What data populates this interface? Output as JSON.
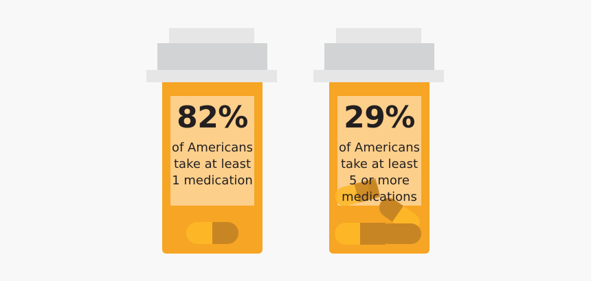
{
  "stats": [
    {
      "percent": "82%",
      "lines": [
        "of Americans",
        "take at least",
        "1 medication"
      ]
    },
    {
      "percent": "29%",
      "lines": [
        "of Americans",
        "take at least",
        "5 or more",
        "medications"
      ]
    }
  ],
  "colors": {
    "background": "#f8f8f8",
    "cap_light": "#e6e6e6",
    "cap_dark": "#d2d3d4",
    "bottle": "#f6a524",
    "label": "#fccf8b",
    "pill_yellow": "#fdb726",
    "pill_brown": "#c88524",
    "text": "#231f20"
  },
  "icons": [
    "pill-bottle-icon",
    "capsule-icon"
  ]
}
